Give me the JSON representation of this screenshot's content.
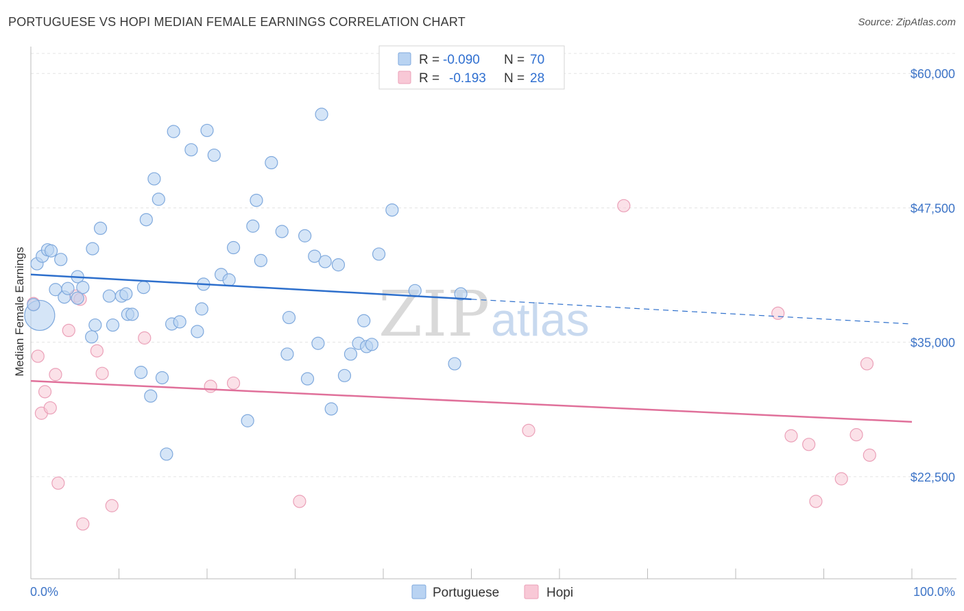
{
  "header": {
    "title": "PORTUGUESE VS HOPI MEDIAN FEMALE EARNINGS CORRELATION CHART",
    "source": "Source: ZipAtlas.com"
  },
  "watermark": {
    "zip": "ZIP",
    "atlas": "atlas"
  },
  "colors": {
    "portuguese_fill": "#b9d3f2",
    "portuguese_stroke": "#7fa9dd",
    "portuguese_line": "#2d6fcc",
    "hopi_fill": "#f8c8d6",
    "hopi_stroke": "#eba0b8",
    "hopi_line": "#e0709a",
    "tick_label": "#3d74c7"
  },
  "legend": {
    "rows": [
      {
        "r_label": "R =",
        "r_value": "-0.090",
        "n_label": "N =",
        "n_value": "70"
      },
      {
        "r_label": "R =",
        "r_value": "-0.193",
        "n_label": "N =",
        "n_value": "28"
      }
    ]
  },
  "bottom_legend": {
    "items": [
      "Portuguese",
      "Hopi"
    ]
  },
  "chart_data": {
    "type": "scatter",
    "title": "PORTUGUESE VS HOPI MEDIAN FEMALE EARNINGS CORRELATION CHART",
    "xlabel": "",
    "ylabel": "Median Female Earnings",
    "xlim": [
      0,
      100
    ],
    "ylim": [
      13000,
      62500
    ],
    "x_tick_labels": [
      "0.0%",
      "100.0%"
    ],
    "y_ticks": [
      22500,
      35000,
      47500,
      60000
    ],
    "y_tick_labels": [
      "$22,500",
      "$35,000",
      "$47,500",
      "$60,000"
    ],
    "grid": true,
    "series": [
      {
        "name": "Portuguese",
        "r": -0.09,
        "n": 70,
        "trend": {
          "x0": 0,
          "y0": 41300,
          "x1": 50,
          "y1": 39000,
          "dash_to_x": 100,
          "dash_to_y": 36700
        },
        "points": [
          [
            0.7,
            42300
          ],
          [
            1.3,
            43000
          ],
          [
            1.9,
            43600
          ],
          [
            2.3,
            43500
          ],
          [
            3.4,
            42700
          ],
          [
            2.8,
            39900
          ],
          [
            3.8,
            39200
          ],
          [
            4.2,
            40000
          ],
          [
            5.3,
            41100
          ],
          [
            5.9,
            40100
          ],
          [
            5.3,
            39100
          ],
          [
            7.0,
            43700
          ],
          [
            7.9,
            45600
          ],
          [
            7.3,
            36600
          ],
          [
            6.9,
            35500
          ],
          [
            8.9,
            39300
          ],
          [
            9.3,
            36600
          ],
          [
            10.3,
            39300
          ],
          [
            10.8,
            39500
          ],
          [
            11.0,
            37600
          ],
          [
            11.5,
            37600
          ],
          [
            12.5,
            32200
          ],
          [
            12.8,
            40100
          ],
          [
            13.1,
            46400
          ],
          [
            13.6,
            30000
          ],
          [
            14.0,
            50200
          ],
          [
            14.5,
            48300
          ],
          [
            14.9,
            31700
          ],
          [
            15.4,
            24600
          ],
          [
            16.0,
            36700
          ],
          [
            16.2,
            54600
          ],
          [
            16.9,
            36900
          ],
          [
            18.2,
            52900
          ],
          [
            18.9,
            36000
          ],
          [
            19.4,
            38100
          ],
          [
            19.6,
            40400
          ],
          [
            20.0,
            54700
          ],
          [
            20.8,
            52400
          ],
          [
            21.6,
            41300
          ],
          [
            22.5,
            40800
          ],
          [
            23.0,
            43800
          ],
          [
            24.6,
            27700
          ],
          [
            25.2,
            45800
          ],
          [
            25.6,
            48200
          ],
          [
            26.1,
            42600
          ],
          [
            27.3,
            51700
          ],
          [
            28.5,
            45300
          ],
          [
            29.1,
            33900
          ],
          [
            29.3,
            37300
          ],
          [
            31.1,
            44900
          ],
          [
            31.4,
            31600
          ],
          [
            32.2,
            43000
          ],
          [
            32.6,
            34900
          ],
          [
            33.0,
            56200
          ],
          [
            33.4,
            42500
          ],
          [
            34.1,
            28800
          ],
          [
            34.9,
            42200
          ],
          [
            35.6,
            31900
          ],
          [
            36.3,
            33900
          ],
          [
            37.2,
            34900
          ],
          [
            37.8,
            37000
          ],
          [
            38.1,
            34600
          ],
          [
            38.7,
            34800
          ],
          [
            39.5,
            43200
          ],
          [
            41.0,
            47300
          ],
          [
            43.6,
            39800
          ],
          [
            48.1,
            33000
          ],
          [
            48.8,
            39500
          ],
          [
            1.0,
            37500
          ],
          [
            0.3,
            38500
          ]
        ]
      },
      {
        "name": "Hopi",
        "r": -0.193,
        "n": 28,
        "trend": {
          "x0": 0,
          "y0": 31400,
          "x1": 100,
          "y1": 27600
        },
        "points": [
          [
            0.3,
            38600
          ],
          [
            0.8,
            33700
          ],
          [
            1.2,
            28400
          ],
          [
            1.6,
            30400
          ],
          [
            2.2,
            28900
          ],
          [
            2.8,
            32000
          ],
          [
            3.1,
            21900
          ],
          [
            4.3,
            36100
          ],
          [
            5.1,
            39300
          ],
          [
            5.6,
            39000
          ],
          [
            5.9,
            18100
          ],
          [
            7.5,
            34200
          ],
          [
            8.1,
            32100
          ],
          [
            9.2,
            19800
          ],
          [
            12.9,
            35400
          ],
          [
            20.4,
            30900
          ],
          [
            23.0,
            31200
          ],
          [
            30.5,
            20200
          ],
          [
            56.5,
            26800
          ],
          [
            67.3,
            47700
          ],
          [
            84.8,
            37700
          ],
          [
            86.3,
            26300
          ],
          [
            88.3,
            25500
          ],
          [
            89.1,
            20200
          ],
          [
            92.0,
            22300
          ],
          [
            93.7,
            26400
          ],
          [
            94.9,
            33000
          ],
          [
            95.2,
            24500
          ]
        ]
      }
    ]
  }
}
